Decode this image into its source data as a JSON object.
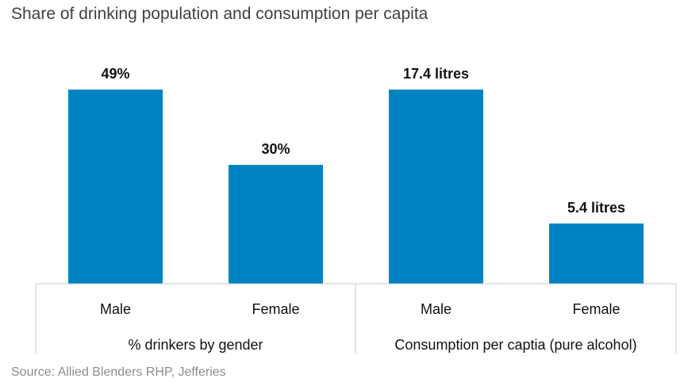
{
  "subtitle": "Share of drinking population and consumption per capita",
  "source": "Source: Allied Blenders RHP, Jefferies",
  "chart_data": {
    "type": "bar",
    "title": "Share of drinking population and consumption per capita",
    "colors": {
      "bar": "#0083C3",
      "axis": "#c8c8c8"
    },
    "groups": [
      {
        "name": "% drinkers by gender",
        "categories": [
          "Male",
          "Female"
        ],
        "values": [
          49,
          30
        ],
        "labels": [
          "49%",
          "30%"
        ],
        "unit": "%"
      },
      {
        "name": "Consumption per captia (pure alcohol)",
        "categories": [
          "Male",
          "Female"
        ],
        "values": [
          17.4,
          5.4
        ],
        "labels": [
          "17.4 litres",
          "5.4 litres"
        ],
        "unit": "litres"
      }
    ],
    "xlabel": "",
    "ylabel": "",
    "legend": "none",
    "grid": false
  }
}
